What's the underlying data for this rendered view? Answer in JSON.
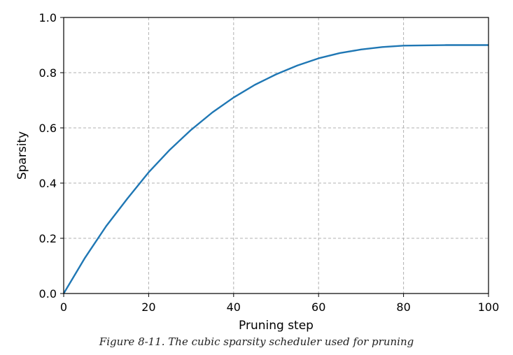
{
  "caption": "Figure 8-11. The cubic sparsity scheduler used for pruning",
  "chart_data": {
    "type": "line",
    "title": "",
    "xlabel": "Pruning step",
    "ylabel": "Sparsity",
    "xlim": [
      0,
      100
    ],
    "ylim": [
      0.0,
      1.0
    ],
    "xticks": [
      0,
      20,
      40,
      60,
      80,
      100
    ],
    "xtick_labels": [
      "0",
      "20",
      "40",
      "60",
      "80",
      "100"
    ],
    "yticks": [
      0.0,
      0.2,
      0.4,
      0.6,
      0.8,
      1.0
    ],
    "ytick_labels": [
      "0.0",
      "0.2",
      "0.4",
      "0.6",
      "0.8",
      "1.0"
    ],
    "grid": true,
    "grid_style": "dashed",
    "series": [
      {
        "color": "#1f77b4",
        "x": [
          0,
          5,
          10,
          15,
          20,
          25,
          30,
          35,
          40,
          45,
          50,
          55,
          60,
          65,
          70,
          75,
          80,
          85,
          90,
          95,
          100
        ],
        "values": [
          0.0,
          0.129,
          0.244,
          0.344,
          0.439,
          0.521,
          0.593,
          0.656,
          0.71,
          0.756,
          0.794,
          0.826,
          0.852,
          0.871,
          0.884,
          0.893,
          0.898,
          0.899,
          0.9,
          0.9,
          0.9
        ]
      }
    ]
  }
}
